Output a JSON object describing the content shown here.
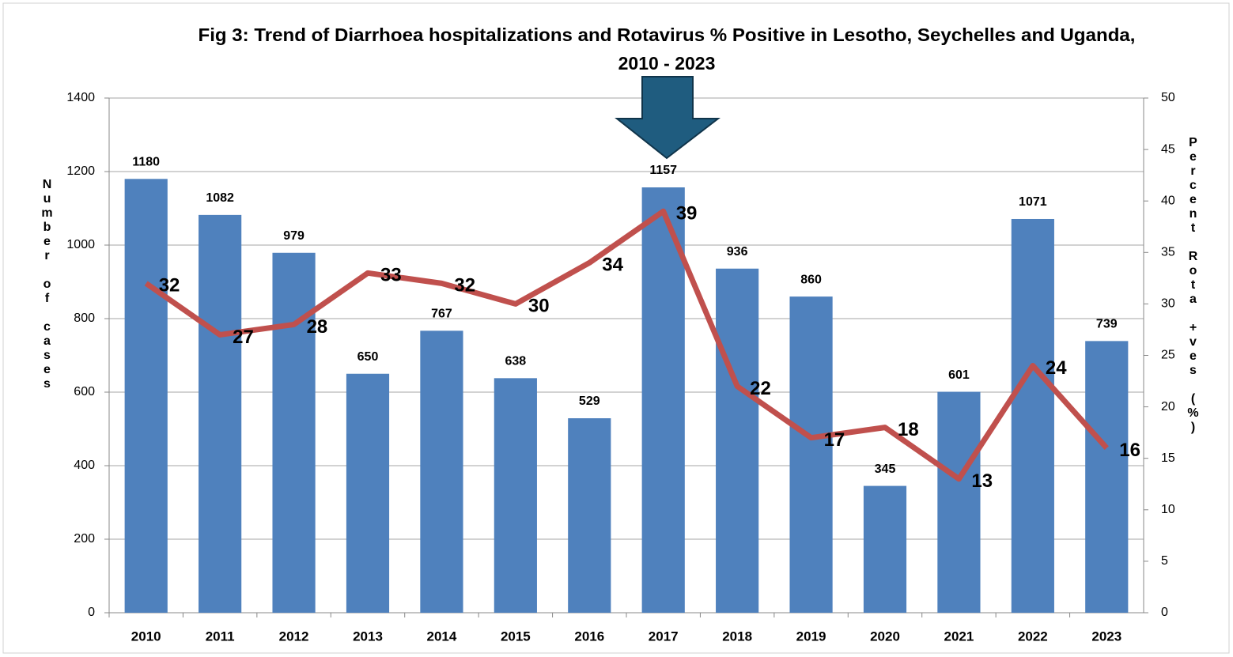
{
  "chart_data": {
    "type": "bar-line",
    "title": [
      "Fig 3: Trend of Diarrhoea hospitalizations and Rotavirus % Positive in Lesotho, Seychelles and Uganda,",
      "2010 - 2023"
    ],
    "y_label": "Number of cases",
    "y2_label": "Percent Rota +ves (%)",
    "categories": [
      "2010",
      "2011",
      "2012",
      "2013",
      "2014",
      "2015",
      "2016",
      "2017",
      "2018",
      "2019",
      "2020",
      "2021",
      "2022",
      "2023"
    ],
    "series": [
      {
        "kind": "bar",
        "color": "#4f81bd",
        "values": [
          1180,
          1082,
          979,
          650,
          767,
          638,
          529,
          1157,
          936,
          860,
          345,
          601,
          1071,
          739
        ]
      },
      {
        "kind": "line",
        "axis": "y2",
        "color": "#c0504d",
        "values": [
          32,
          27,
          28,
          33,
          32,
          30,
          34,
          39,
          22,
          17,
          18,
          13,
          24,
          16
        ]
      }
    ],
    "ylim": [
      0,
      1400
    ],
    "yticks": [
      0,
      200,
      400,
      600,
      800,
      1000,
      1200,
      1400
    ],
    "y2lim": [
      0,
      50
    ],
    "y2ticks": [
      0,
      5,
      10,
      15,
      20,
      25,
      30,
      35,
      40,
      45,
      50
    ],
    "grid": true
  }
}
